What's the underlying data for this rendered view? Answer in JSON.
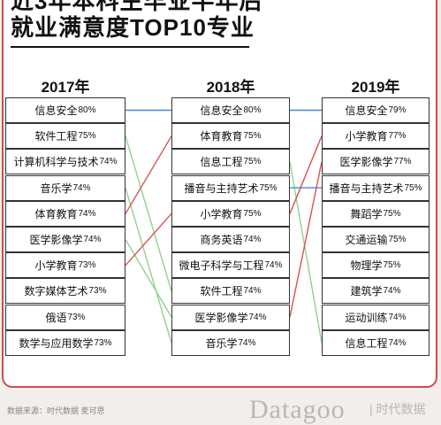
{
  "header": {
    "title_line1": "近3年本科生毕业半年后",
    "title_line2": "就业满意度TOP10专业"
  },
  "chart_data": {
    "type": "table",
    "years": [
      {
        "year": "2017年",
        "items": [
          {
            "name": "信息安全",
            "value": "80%"
          },
          {
            "name": "软件工程",
            "value": "75%"
          },
          {
            "name": "计算机科学与技术",
            "value": "74%"
          },
          {
            "name": "音乐学",
            "value": "74%"
          },
          {
            "name": "体育教育",
            "value": "74%"
          },
          {
            "name": "医学影像学",
            "value": "74%"
          },
          {
            "name": "小学教育",
            "value": "73%"
          },
          {
            "name": "数字媒体艺术",
            "value": "73%"
          },
          {
            "name": "俄语",
            "value": "73%"
          },
          {
            "name": "数学与应用数学",
            "value": "73%"
          }
        ]
      },
      {
        "year": "2018年",
        "items": [
          {
            "name": "信息安全",
            "value": "80%"
          },
          {
            "name": "体育教育",
            "value": "75%"
          },
          {
            "name": "信息工程",
            "value": "75%"
          },
          {
            "name": "播音与主持艺术",
            "value": "75%"
          },
          {
            "name": "小学教育",
            "value": "75%"
          },
          {
            "name": "商务英语",
            "value": "74%"
          },
          {
            "name": "微电子科学与工程",
            "value": "74%"
          },
          {
            "name": "软件工程",
            "value": "74%"
          },
          {
            "name": "医学影像学",
            "value": "74%"
          },
          {
            "name": "音乐学",
            "value": "74%"
          }
        ]
      },
      {
        "year": "2019年",
        "items": [
          {
            "name": "信息安全",
            "value": "79%"
          },
          {
            "name": "小学教育",
            "value": "77%"
          },
          {
            "name": "医学影像学",
            "value": "77%"
          },
          {
            "name": "播音与主持艺术",
            "value": "75%"
          },
          {
            "name": "舞蹈学",
            "value": "75%"
          },
          {
            "name": "交通运输",
            "value": "75%"
          },
          {
            "name": "物理学",
            "value": "75%"
          },
          {
            "name": "建筑学",
            "value": "74%"
          },
          {
            "name": "运动训练",
            "value": "74%"
          },
          {
            "name": "信息工程",
            "value": "74%"
          }
        ]
      }
    ],
    "link_colors": {
      "same": "#3d8fd4",
      "up": "#d9534f",
      "down": "#8fd48a"
    }
  },
  "footer": {
    "source": "数据来源：时代数据 麦可思",
    "logo": "Datagoo",
    "logo_cn": "| 时代数据"
  }
}
